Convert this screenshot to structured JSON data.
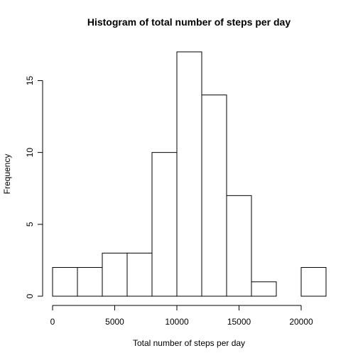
{
  "chart_data": {
    "type": "bar",
    "title": "Histogram of total number of steps per day",
    "xlabel": "Total number of steps per day",
    "ylabel": "Frequency",
    "bin_edges": [
      0,
      2000,
      4000,
      6000,
      8000,
      10000,
      12000,
      14000,
      16000,
      18000,
      20000,
      22000
    ],
    "values": [
      2,
      2,
      3,
      3,
      10,
      17,
      14,
      7,
      1,
      0,
      2
    ],
    "xlim": [
      0,
      22000
    ],
    "ylim": [
      0,
      17
    ],
    "x_ticks": [
      0,
      5000,
      10000,
      15000,
      20000
    ],
    "y_ticks": [
      0,
      5,
      10,
      15
    ],
    "grid": false,
    "bar_fill": "#ffffff",
    "bar_stroke": "#000000"
  }
}
